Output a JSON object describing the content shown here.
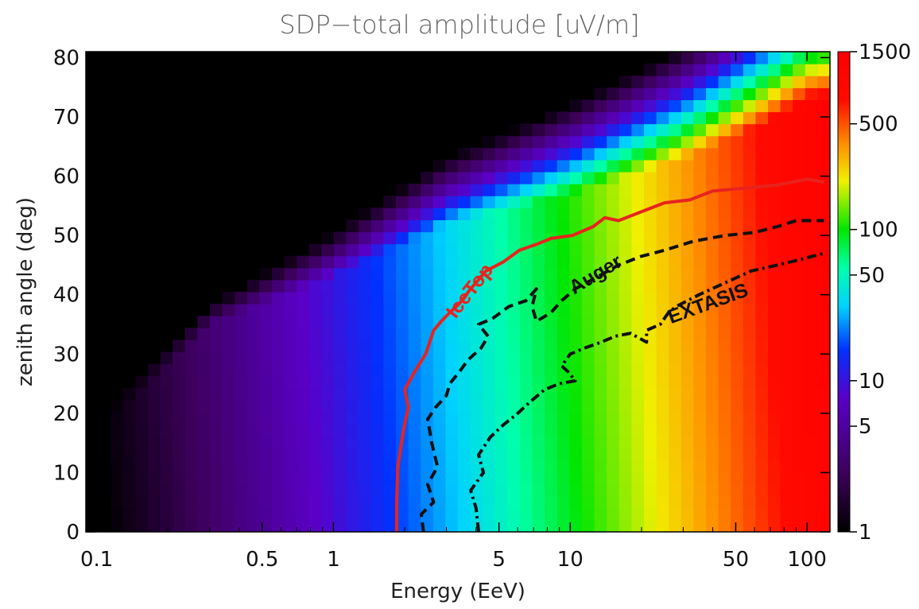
{
  "chart_data": {
    "type": "heatmap",
    "title": "SDP−total amplitude [uV/m]",
    "xlabel": "Energy (EeV)",
    "ylabel": "zenith angle (deg)",
    "xscale": "log",
    "xlim": [
      0.09,
      125
    ],
    "ylim": [
      0,
      81
    ],
    "x_ticks": [
      0.1,
      0.5,
      1,
      5,
      10,
      50,
      100
    ],
    "x_tick_labels": [
      "0.1",
      "0.5",
      "1",
      "5",
      "10",
      "50",
      "100"
    ],
    "y_ticks": [
      0,
      10,
      20,
      30,
      40,
      50,
      60,
      70,
      80
    ],
    "y_tick_labels": [
      "0",
      "10",
      "20",
      "30",
      "40",
      "50",
      "60",
      "70",
      "80"
    ],
    "colorbar": {
      "scale": "log",
      "range": [
        1,
        1500
      ],
      "ticks": [
        1,
        5,
        10,
        50,
        100,
        500,
        1500
      ],
      "tick_labels": [
        "1",
        "5",
        "10",
        "50",
        "100",
        "500",
        "1500"
      ],
      "colormap": "rainbow"
    },
    "heatmap_model": {
      "description": "amplitude grows roughly linearly with energy and stays flat with zenith until a horizon cutoff",
      "amplitude_at_1EeV_uV_per_m": 9,
      "energy_exponent": 1.0,
      "cutoff_zenith_deg_at_energy": [
        [
          0.1,
          18
        ],
        [
          0.3,
          35
        ],
        [
          1,
          43
        ],
        [
          3,
          52
        ],
        [
          10,
          57
        ],
        [
          30,
          63
        ],
        [
          100,
          72
        ]
      ]
    },
    "contours": [
      {
        "name": "IceTop",
        "color": "#e8231e",
        "style": "solid",
        "points": [
          [
            1.85,
            0
          ],
          [
            1.85,
            5
          ],
          [
            1.87,
            11
          ],
          [
            1.97,
            17
          ],
          [
            2.07,
            21
          ],
          [
            2.0,
            24
          ],
          [
            2.2,
            27
          ],
          [
            2.45,
            30
          ],
          [
            2.65,
            34
          ],
          [
            2.85,
            35.5
          ],
          [
            3.1,
            37
          ],
          [
            3.4,
            38.5
          ],
          [
            3.8,
            41
          ],
          [
            4.4,
            44
          ],
          [
            5.2,
            45.5
          ],
          [
            6.1,
            47.5
          ],
          [
            7.2,
            48.5
          ],
          [
            8.3,
            49.5
          ],
          [
            10.2,
            50
          ],
          [
            12.5,
            51.5
          ],
          [
            14,
            53
          ],
          [
            16,
            52.5
          ],
          [
            20,
            54
          ],
          [
            25,
            55.5
          ],
          [
            32,
            56
          ],
          [
            40,
            57.5
          ],
          [
            55,
            58
          ],
          [
            75,
            58.5
          ],
          [
            100,
            59.5
          ],
          [
            118,
            59
          ]
        ]
      },
      {
        "name": "Auger",
        "color": "#111111",
        "style": "dashed",
        "points": [
          [
            2.4,
            0
          ],
          [
            2.35,
            3
          ],
          [
            2.65,
            5
          ],
          [
            2.5,
            8
          ],
          [
            2.75,
            11
          ],
          [
            2.6,
            15
          ],
          [
            2.5,
            19
          ],
          [
            2.7,
            21
          ],
          [
            3.0,
            23
          ],
          [
            3.1,
            25
          ],
          [
            3.4,
            27
          ],
          [
            3.7,
            29
          ],
          [
            4.2,
            31
          ],
          [
            4.5,
            33
          ],
          [
            4.1,
            35
          ],
          [
            4.7,
            36
          ],
          [
            5.5,
            38
          ],
          [
            6.5,
            39
          ],
          [
            7.2,
            41
          ],
          [
            6.9,
            38
          ],
          [
            7.2,
            35.5
          ],
          [
            8.3,
            37
          ],
          [
            9.2,
            39
          ],
          [
            10.5,
            41
          ],
          [
            13,
            43
          ],
          [
            16,
            45
          ],
          [
            20,
            46.5
          ],
          [
            25,
            47.5
          ],
          [
            33,
            49
          ],
          [
            45,
            50
          ],
          [
            60,
            50.5
          ],
          [
            75,
            51.5
          ],
          [
            90,
            52.5
          ],
          [
            118,
            52.5
          ]
        ]
      },
      {
        "name": "EXTASIS",
        "color": "#111111",
        "style": "dashdot",
        "points": [
          [
            4.1,
            0
          ],
          [
            4.0,
            4
          ],
          [
            3.8,
            7
          ],
          [
            4.3,
            10
          ],
          [
            4.1,
            13
          ],
          [
            4.6,
            16
          ],
          [
            5.2,
            18
          ],
          [
            6.0,
            20
          ],
          [
            6.8,
            22
          ],
          [
            7.8,
            24
          ],
          [
            9.0,
            25
          ],
          [
            10.5,
            25.5
          ],
          [
            9.8,
            27
          ],
          [
            9.2,
            28
          ],
          [
            10.0,
            30
          ],
          [
            11.5,
            31
          ],
          [
            13.5,
            32
          ],
          [
            15.5,
            33
          ],
          [
            18,
            33.5
          ],
          [
            21,
            32
          ],
          [
            21,
            34
          ],
          [
            24,
            35
          ],
          [
            26,
            37
          ],
          [
            28,
            38
          ],
          [
            35,
            40
          ],
          [
            45,
            42
          ],
          [
            58,
            44
          ],
          [
            75,
            45
          ],
          [
            95,
            46
          ],
          [
            118,
            47
          ]
        ]
      }
    ],
    "annotations": [
      {
        "text": "IceTop",
        "color": "#e8231e"
      },
      {
        "text": "Auger",
        "color": "#111111"
      },
      {
        "text": "EXTASIS",
        "color": "#111111"
      }
    ]
  }
}
